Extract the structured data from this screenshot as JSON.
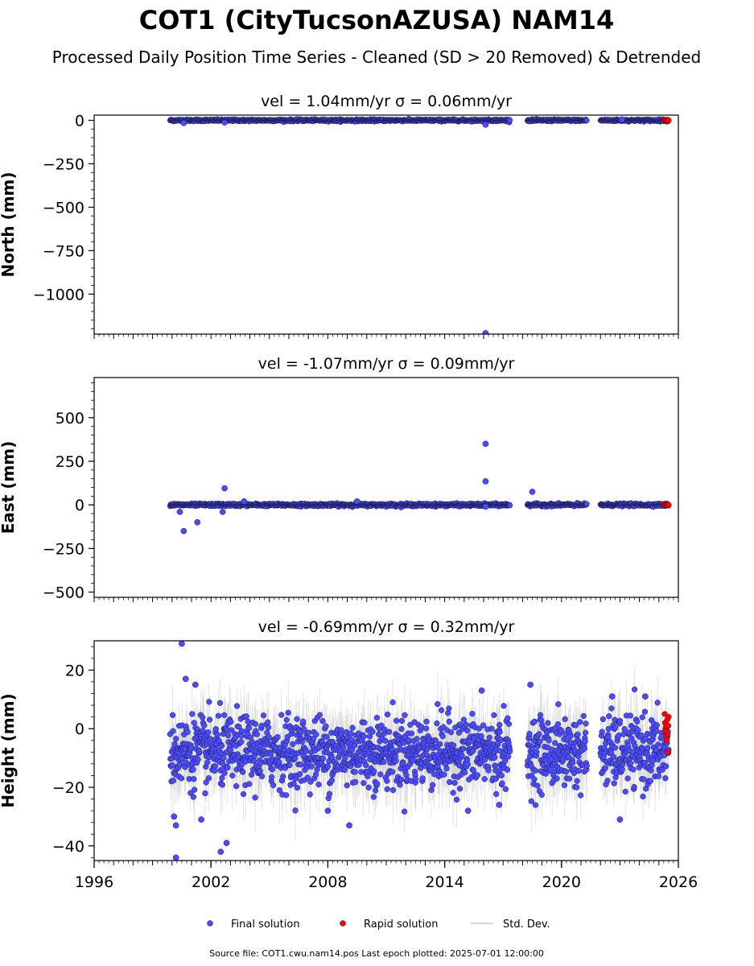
{
  "figure": {
    "title": "COT1 (CityTucsonAZUSA) NAM14",
    "subtitle": "Processed Daily Position Time Series - Cleaned (SD > 20 Removed) & Detrended",
    "footer": "Source file: COT1.cwu.nam14.pos  Last epoch plotted: 2025-07-01 12:00:00"
  },
  "legend": {
    "placement": "bottom-center",
    "items": [
      {
        "label": "Final solution",
        "color": "#4c4cff",
        "marker": "circle"
      },
      {
        "label": "Rapid solution",
        "color": "#ff0000",
        "marker": "circle"
      },
      {
        "label": "Std. Dev.",
        "color": "#c8c8c8",
        "marker": "line"
      }
    ]
  },
  "chart_data": [
    {
      "type": "scatter",
      "panel": "north",
      "title": "vel = 1.04mm/yr   σ = 0.06mm/yr",
      "ylabel": "North (mm)",
      "xlim": [
        1996,
        2026
      ],
      "ylim": [
        -1230,
        30
      ],
      "yticks": [
        0,
        -250,
        -500,
        -750,
        -1000
      ],
      "ytick_labels": [
        "0",
        "−250",
        "−500",
        "−750",
        "−1000"
      ],
      "noise_sd": 3,
      "segments": [
        [
          1999.9,
          2017.35
        ],
        [
          2018.25,
          2021.3
        ],
        [
          2022.0,
          2025.5
        ]
      ],
      "outliers": [
        [
          2000.6,
          -15
        ],
        [
          2002.7,
          -12
        ],
        [
          2016.1,
          -25
        ],
        [
          2016.1,
          -1225
        ],
        [
          2023.1,
          5
        ]
      ],
      "rapid": {
        "x_range": [
          2025.25,
          2025.5
        ],
        "values": [
          0,
          2,
          -1,
          1,
          0,
          -2,
          1,
          0
        ]
      },
      "grid": false
    },
    {
      "type": "scatter",
      "panel": "east",
      "title": "vel = -1.07mm/yr   σ = 0.09mm/yr",
      "ylabel": "East (mm)",
      "xlim": [
        1996,
        2026
      ],
      "ylim": [
        -530,
        730
      ],
      "yticks": [
        500,
        250,
        0,
        -250,
        -500
      ],
      "ytick_labels": [
        "500",
        "250",
        "0",
        "−250",
        "−500"
      ],
      "noise_sd": 4,
      "segments": [
        [
          1999.9,
          2017.35
        ],
        [
          2018.25,
          2021.3
        ],
        [
          2022.0,
          2025.5
        ]
      ],
      "outliers": [
        [
          2000.4,
          -40
        ],
        [
          2000.6,
          -150
        ],
        [
          2001.3,
          -100
        ],
        [
          2002.6,
          -40
        ],
        [
          2002.7,
          95
        ],
        [
          2003.7,
          20
        ],
        [
          2009.5,
          20
        ],
        [
          2016.1,
          350
        ],
        [
          2016.1,
          135
        ],
        [
          2016.1,
          -10
        ],
        [
          2018.5,
          75
        ]
      ],
      "rapid": {
        "x_range": [
          2025.25,
          2025.5
        ],
        "values": [
          0,
          2,
          -1,
          1,
          0,
          -2,
          1,
          0
        ]
      },
      "grid": false
    },
    {
      "type": "scatter",
      "panel": "height",
      "title": "vel = -0.69mm/yr   σ = 0.32mm/yr",
      "ylabel": "Height (mm)",
      "xlim": [
        1996,
        2026
      ],
      "ylim": [
        -45,
        30
      ],
      "yticks": [
        20,
        0,
        -20,
        -40
      ],
      "ytick_labels": [
        "20",
        "0",
        "−20",
        "−40"
      ],
      "xticks": [
        1996,
        2002,
        2008,
        2014,
        2020,
        2026
      ],
      "xtick_labels": [
        "1996",
        "2002",
        "2008",
        "2014",
        "2020",
        "2026"
      ],
      "mean": -8,
      "noise_sd": 6,
      "segments": [
        [
          1999.9,
          2017.35
        ],
        [
          2018.25,
          2021.3
        ],
        [
          2022.0,
          2025.5
        ]
      ],
      "outliers": [
        [
          2000.5,
          29
        ],
        [
          2000.2,
          -44
        ],
        [
          2000.1,
          -30
        ],
        [
          2000.2,
          -33
        ],
        [
          2001.5,
          -31
        ],
        [
          2002.5,
          -42
        ],
        [
          2002.8,
          -39
        ],
        [
          2008.0,
          -28
        ],
        [
          2009.1,
          -33
        ],
        [
          2015.2,
          -28
        ],
        [
          2016.8,
          -26
        ],
        [
          2023.0,
          -31
        ],
        [
          2000.7,
          17
        ],
        [
          2001.2,
          15
        ],
        [
          2015.9,
          13
        ],
        [
          2018.4,
          15
        ],
        [
          2022.6,
          11
        ],
        [
          2024.3,
          11
        ]
      ],
      "rapid": {
        "x_range": [
          2025.3,
          2025.5
        ],
        "values": [
          5,
          2,
          0,
          -1,
          1,
          -3,
          -4,
          3,
          -2,
          -8,
          1,
          4
        ]
      },
      "std_dev_spread": 8,
      "grid": false
    }
  ]
}
